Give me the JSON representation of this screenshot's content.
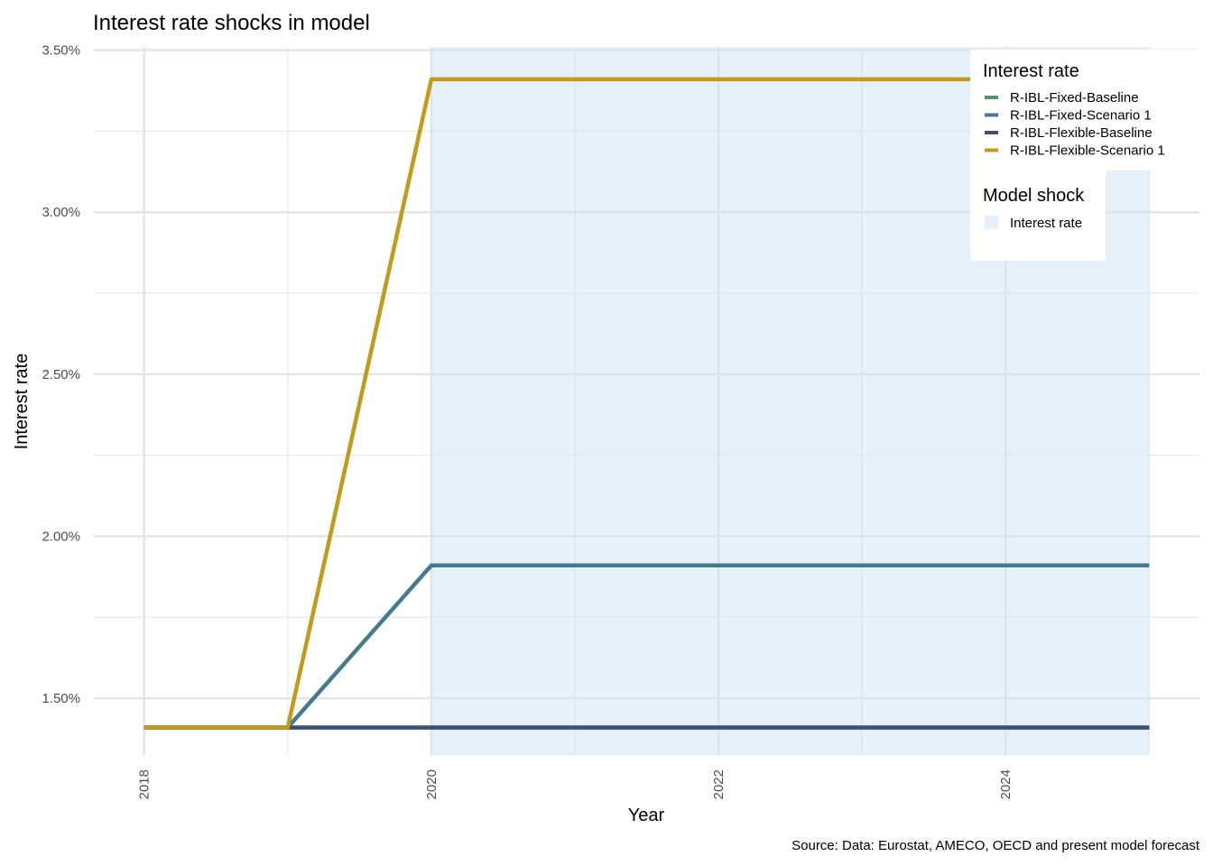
{
  "chart_data": {
    "type": "line",
    "title": "Interest rate shocks in model",
    "xlabel": "Year",
    "ylabel": "Interest rate",
    "caption": "Source: Data: Eurostat, AMECO, OECD and present model forecast",
    "x": [
      2018,
      2019,
      2020,
      2021,
      2022,
      2023,
      2024,
      2025
    ],
    "x_ticks": [
      "2018",
      "2020",
      "2022",
      "2024"
    ],
    "xlim": [
      2017.65,
      2025.35
    ],
    "ylim": [
      1.325,
      3.51
    ],
    "y_ticks": [
      1.5,
      2.0,
      2.5,
      3.0,
      3.5
    ],
    "y_tick_labels": [
      "1.50%",
      "2.00%",
      "2.50%",
      "3.00%",
      "3.50%"
    ],
    "grid": true,
    "shaded_regions": [
      {
        "name": "Interest rate",
        "from": 2020,
        "to": 2025,
        "color": "#e6f0fb"
      }
    ],
    "series": [
      {
        "name": "R-IBL-Fixed-Baseline",
        "color": "#4c9a6a",
        "values": [
          1.41,
          1.41,
          1.41,
          1.41,
          1.41,
          1.41,
          1.41,
          1.41
        ]
      },
      {
        "name": "R-IBL-Fixed-Scenario 1",
        "color": "#457b91",
        "values": [
          1.41,
          1.41,
          1.91,
          1.91,
          1.91,
          1.91,
          1.91,
          1.91
        ]
      },
      {
        "name": "R-IBL-Flexible-Baseline",
        "color": "#3b5179",
        "values": [
          1.41,
          1.41,
          1.41,
          1.41,
          1.41,
          1.41,
          1.41,
          1.41
        ]
      },
      {
        "name": "R-IBL-Flexible-Scenario 1",
        "color": "#c49a1a",
        "values": [
          1.41,
          1.41,
          3.41,
          3.41,
          3.41,
          3.41,
          3.41,
          3.41
        ]
      }
    ],
    "legend": {
      "placement": "top-right",
      "line_title": "Interest rate",
      "shock_title": "Model shock",
      "shock_label": "Interest rate"
    }
  }
}
